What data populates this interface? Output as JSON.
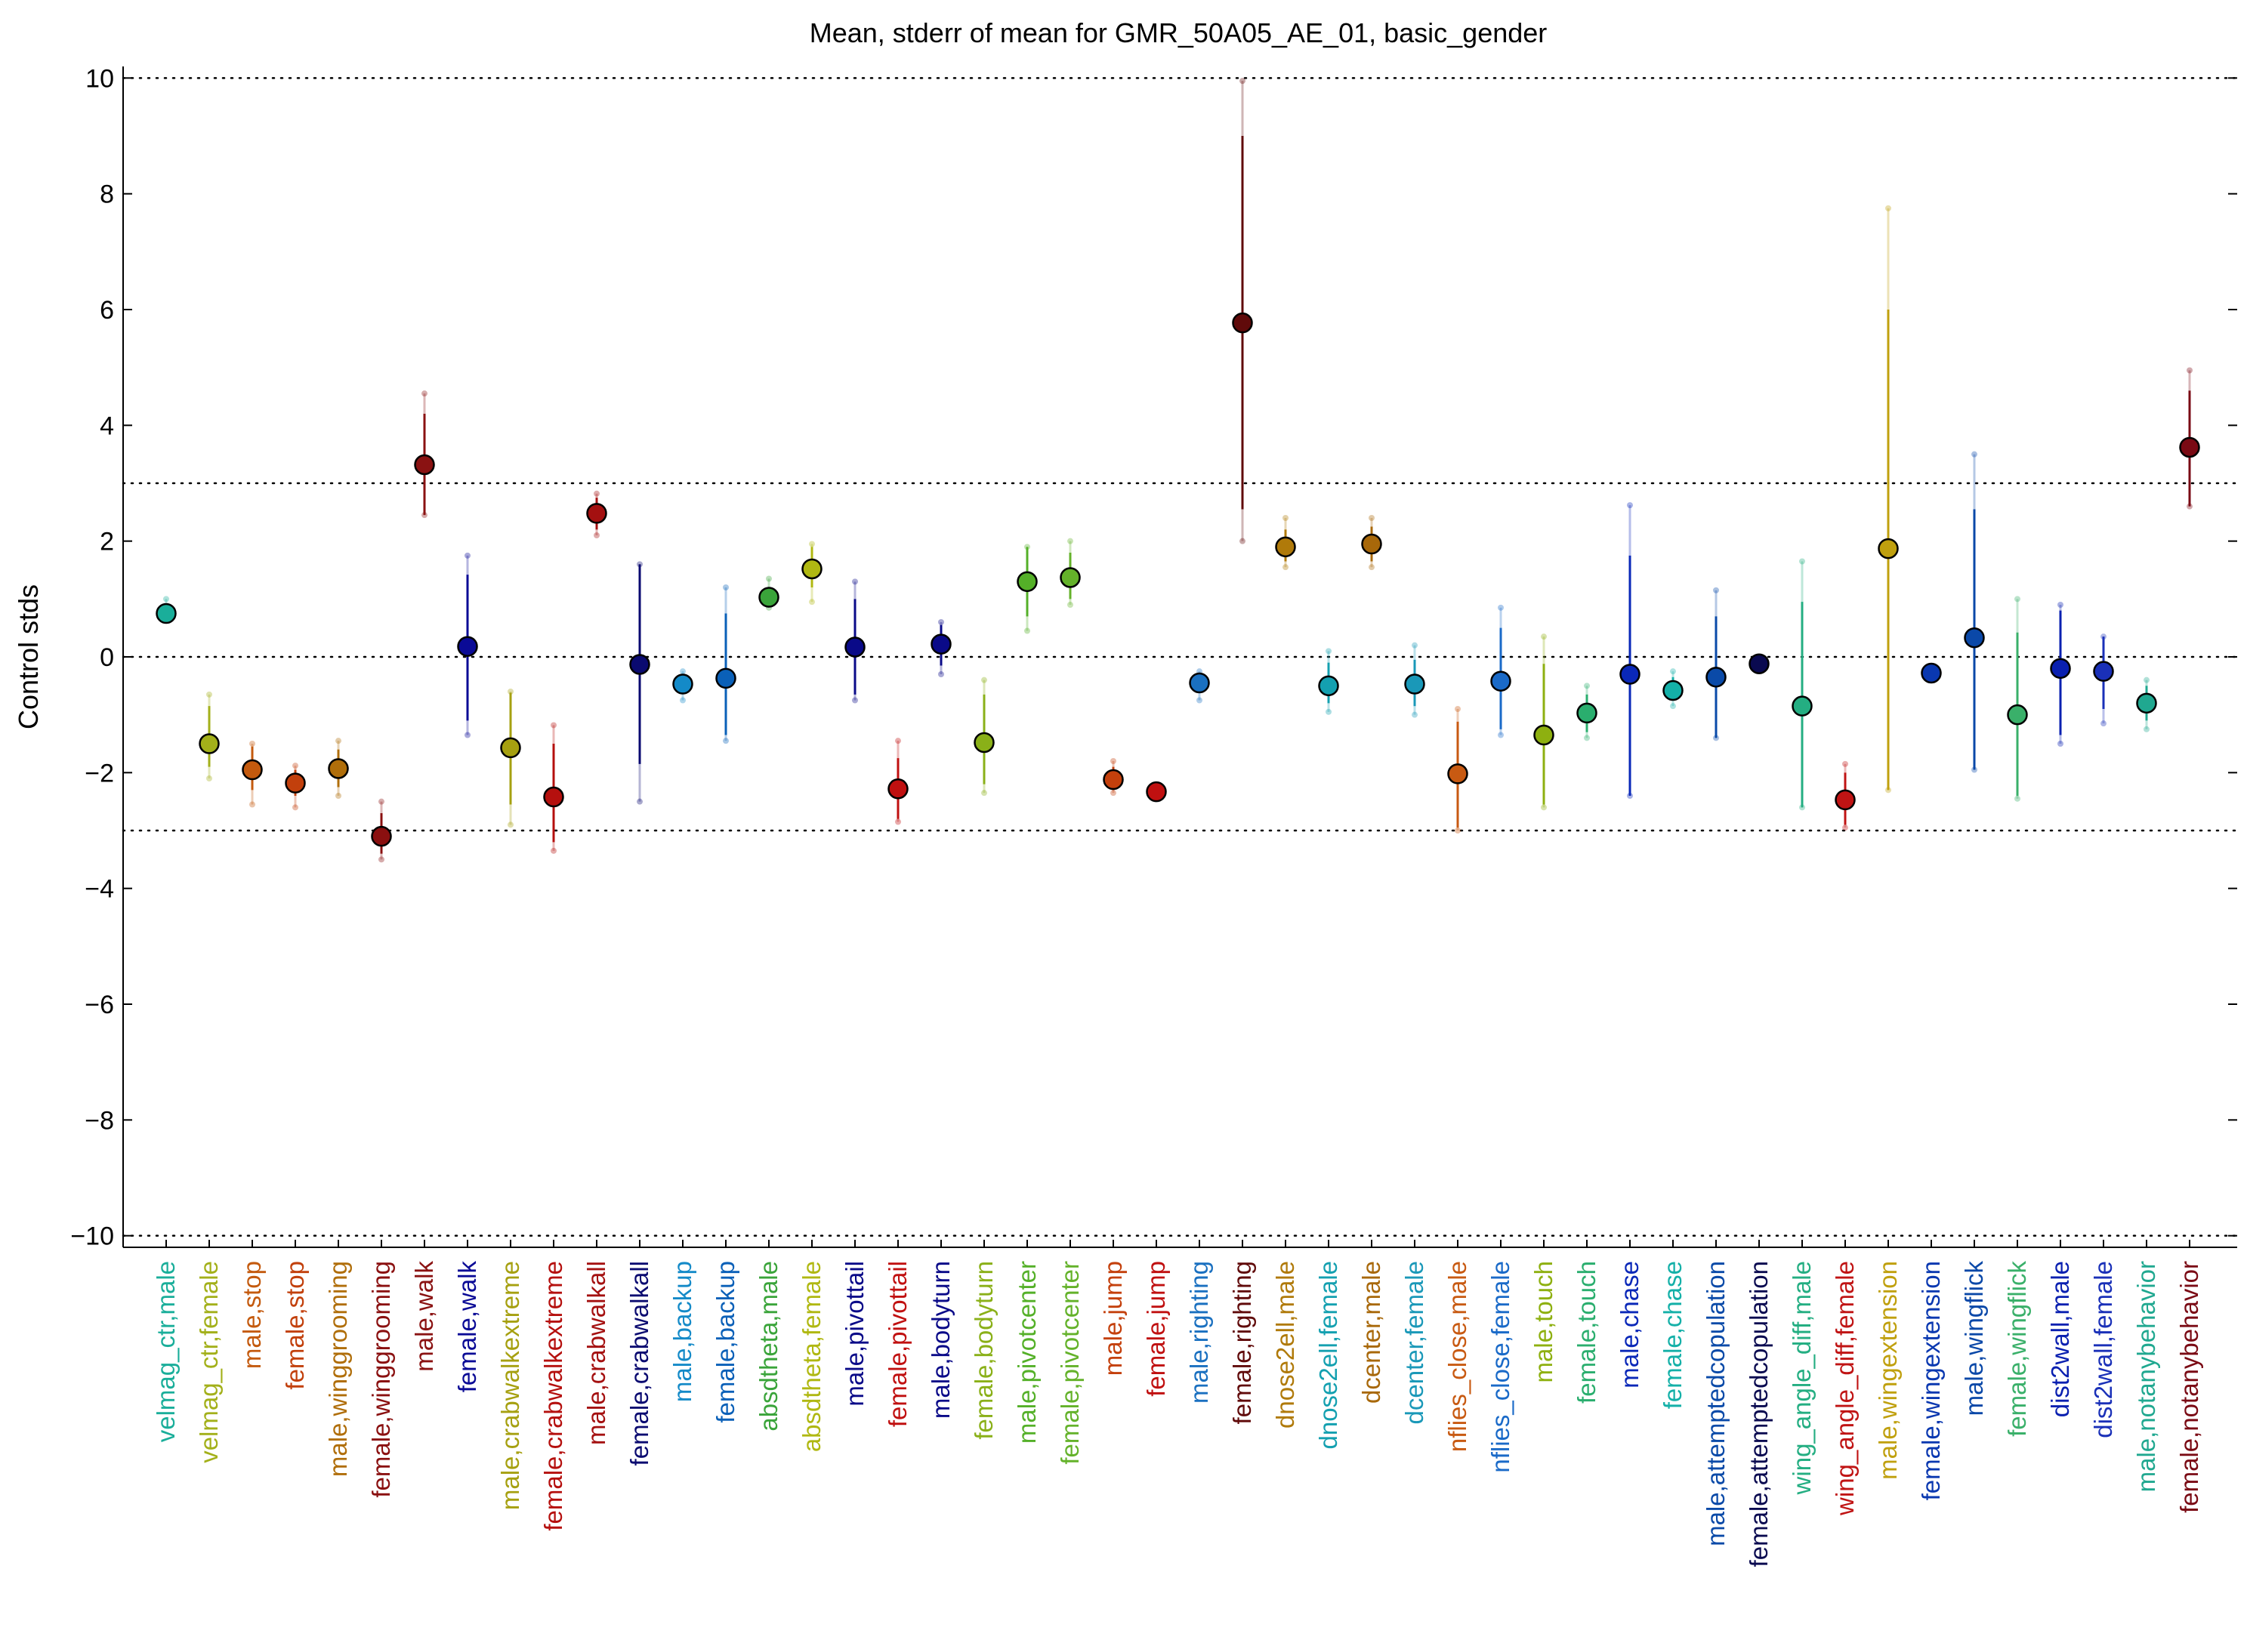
{
  "chart_data": {
    "type": "scatter",
    "title": "Mean, stderr of mean for GMR_50A05_AE_01, basic_gender",
    "xlabel": "",
    "ylabel": "Control stds",
    "ylim": [
      -10.2,
      10.2
    ],
    "yticks": [
      "10",
      "8",
      "6",
      "4",
      "2",
      "0",
      "−2",
      "−4",
      "−6",
      "−8",
      "−10"
    ],
    "ytick_values": [
      10,
      8,
      6,
      4,
      2,
      0,
      -2,
      -4,
      -6,
      -8,
      -10
    ],
    "reference_lines": [
      10,
      3,
      0,
      -3,
      -10
    ],
    "grid": false,
    "legend": "none",
    "points": [
      {
        "label": "velmag_ctr,male",
        "mean": 0.75,
        "err_lo": 0.7,
        "err_hi": 0.8,
        "ext_lo": 0.65,
        "ext_hi": 1.0,
        "color": "#1aae9a"
      },
      {
        "label": "velmag_ctr,female",
        "mean": -1.5,
        "err_lo": -1.9,
        "err_hi": -0.85,
        "ext_lo": -2.1,
        "ext_hi": -0.65,
        "color": "#a3b01a"
      },
      {
        "label": "male,stop",
        "mean": -1.95,
        "err_lo": -2.3,
        "err_hi": -1.55,
        "ext_lo": -2.55,
        "ext_hi": -1.5,
        "color": "#c45a0e"
      },
      {
        "label": "female,stop",
        "mean": -2.18,
        "err_lo": -2.4,
        "err_hi": -1.95,
        "ext_lo": -2.6,
        "ext_hi": -1.88,
        "color": "#c2400c"
      },
      {
        "label": "male,winggrooming",
        "mean": -1.93,
        "err_lo": -2.25,
        "err_hi": -1.6,
        "ext_lo": -2.4,
        "ext_hi": -1.45,
        "color": "#b06e0a"
      },
      {
        "label": "female,winggrooming",
        "mean": -3.1,
        "err_lo": -3.4,
        "err_hi": -2.7,
        "ext_lo": -3.5,
        "ext_hi": -2.5,
        "color": "#8a1010"
      },
      {
        "label": "male,walk",
        "mean": 3.32,
        "err_lo": 2.45,
        "err_hi": 4.2,
        "ext_lo": 2.45,
        "ext_hi": 4.55,
        "color": "#8a1212"
      },
      {
        "label": "female,walk",
        "mean": 0.18,
        "err_lo": -1.1,
        "err_hi": 1.42,
        "ext_lo": -1.35,
        "ext_hi": 1.75,
        "color": "#0a0a96"
      },
      {
        "label": "male,crabwalkextreme",
        "mean": -1.57,
        "err_lo": -2.55,
        "err_hi": -0.62,
        "ext_lo": -2.9,
        "ext_hi": -0.6,
        "color": "#a6a010"
      },
      {
        "label": "female,crabwalkextreme",
        "mean": -2.42,
        "err_lo": -3.2,
        "err_hi": -1.5,
        "ext_lo": -3.35,
        "ext_hi": -1.18,
        "color": "#b5100e"
      },
      {
        "label": "male,crabwalkall",
        "mean": 2.48,
        "err_lo": 2.2,
        "err_hi": 2.75,
        "ext_lo": 2.1,
        "ext_hi": 2.82,
        "color": "#a41010"
      },
      {
        "label": "female,crabwalkall",
        "mean": -0.13,
        "err_lo": -1.85,
        "err_hi": 1.6,
        "ext_lo": -2.5,
        "ext_hi": 1.6,
        "color": "#0a0a70"
      },
      {
        "label": "male,backup",
        "mean": -0.47,
        "err_lo": -0.6,
        "err_hi": -0.35,
        "ext_lo": -0.75,
        "ext_hi": -0.25,
        "color": "#148ac8"
      },
      {
        "label": "female,backup",
        "mean": -0.37,
        "err_lo": -1.35,
        "err_hi": 0.75,
        "ext_lo": -1.45,
        "ext_hi": 1.2,
        "color": "#0a60b8"
      },
      {
        "label": "absdtheta,male",
        "mean": 1.03,
        "err_lo": 0.9,
        "err_hi": 1.2,
        "ext_lo": 0.85,
        "ext_hi": 1.35,
        "color": "#3aa43a"
      },
      {
        "label": "absdtheta,female",
        "mean": 1.52,
        "err_lo": 1.2,
        "err_hi": 1.9,
        "ext_lo": 0.95,
        "ext_hi": 1.95,
        "color": "#b0b812"
      },
      {
        "label": "male,pivottail",
        "mean": 0.17,
        "err_lo": -0.65,
        "err_hi": 1.0,
        "ext_lo": -0.75,
        "ext_hi": 1.3,
        "color": "#0a0a88"
      },
      {
        "label": "female,pivottail",
        "mean": -2.28,
        "err_lo": -2.8,
        "err_hi": -1.75,
        "ext_lo": -2.85,
        "ext_hi": -1.45,
        "color": "#c01010"
      },
      {
        "label": "male,bodyturn",
        "mean": 0.22,
        "err_lo": -0.15,
        "err_hi": 0.55,
        "ext_lo": -0.3,
        "ext_hi": 0.6,
        "color": "#0a0a88"
      },
      {
        "label": "female,bodyturn",
        "mean": -1.48,
        "err_lo": -2.2,
        "err_hi": -0.65,
        "ext_lo": -2.35,
        "ext_hi": -0.4,
        "color": "#8ab018"
      },
      {
        "label": "male,pivotcenter",
        "mean": 1.3,
        "err_lo": 0.7,
        "err_hi": 1.9,
        "ext_lo": 0.45,
        "ext_hi": 1.9,
        "color": "#54b028"
      },
      {
        "label": "female,pivotcenter",
        "mean": 1.37,
        "err_lo": 1.0,
        "err_hi": 1.8,
        "ext_lo": 0.9,
        "ext_hi": 2.0,
        "color": "#64b22a"
      },
      {
        "label": "male,jump",
        "mean": -2.12,
        "err_lo": -2.3,
        "err_hi": -1.9,
        "ext_lo": -2.35,
        "ext_hi": -1.8,
        "color": "#c4400c"
      },
      {
        "label": "female,jump",
        "mean": -2.33,
        "err_lo": -2.35,
        "err_hi": -2.3,
        "ext_lo": -2.35,
        "ext_hi": -2.3,
        "color": "#c01010"
      },
      {
        "label": "male,righting",
        "mean": -0.45,
        "err_lo": -0.6,
        "err_hi": -0.3,
        "ext_lo": -0.75,
        "ext_hi": -0.25,
        "color": "#1a70c0"
      },
      {
        "label": "female,righting",
        "mean": 5.77,
        "err_lo": 2.55,
        "err_hi": 9.0,
        "ext_lo": 2.0,
        "ext_hi": 9.95,
        "color": "#600a0a"
      },
      {
        "label": "dnose2ell,male",
        "mean": 1.9,
        "err_lo": 1.65,
        "err_hi": 2.2,
        "ext_lo": 1.55,
        "ext_hi": 2.4,
        "color": "#b07a0a"
      },
      {
        "label": "dnose2ell,female",
        "mean": -0.5,
        "err_lo": -0.8,
        "err_hi": -0.1,
        "ext_lo": -0.95,
        "ext_hi": 0.1,
        "color": "#14a0b0"
      },
      {
        "label": "dcenter,male",
        "mean": 1.95,
        "err_lo": 1.65,
        "err_hi": 2.25,
        "ext_lo": 1.55,
        "ext_hi": 2.4,
        "color": "#a8680a"
      },
      {
        "label": "dcenter,female",
        "mean": -0.47,
        "err_lo": -0.85,
        "err_hi": -0.05,
        "ext_lo": -1.0,
        "ext_hi": 0.2,
        "color": "#1a98b8"
      },
      {
        "label": "nflies_close,male",
        "mean": -2.02,
        "err_lo": -2.95,
        "err_hi": -1.12,
        "ext_lo": -3.0,
        "ext_hi": -0.9,
        "color": "#c85a12"
      },
      {
        "label": "nflies_close,female",
        "mean": -0.42,
        "err_lo": -1.25,
        "err_hi": 0.5,
        "ext_lo": -1.35,
        "ext_hi": 0.85,
        "color": "#1a6ac8"
      },
      {
        "label": "male,touch",
        "mean": -1.35,
        "err_lo": -2.55,
        "err_hi": -0.12,
        "ext_lo": -2.6,
        "ext_hi": 0.35,
        "color": "#8eb010"
      },
      {
        "label": "female,touch",
        "mean": -0.97,
        "err_lo": -1.3,
        "err_hi": -0.65,
        "ext_lo": -1.4,
        "ext_hi": -0.5,
        "color": "#2aae6e"
      },
      {
        "label": "male,chase",
        "mean": -0.3,
        "err_lo": -2.4,
        "err_hi": 1.75,
        "ext_lo": -2.4,
        "ext_hi": 2.62,
        "color": "#0a28b8"
      },
      {
        "label": "female,chase",
        "mean": -0.58,
        "err_lo": -0.75,
        "err_hi": -0.35,
        "ext_lo": -0.85,
        "ext_hi": -0.25,
        "color": "#14b0a8"
      },
      {
        "label": "male,attemptedcopulation",
        "mean": -0.35,
        "err_lo": -1.4,
        "err_hi": 0.7,
        "ext_lo": -1.4,
        "ext_hi": 1.15,
        "color": "#0a4aa8"
      },
      {
        "label": "female,attemptedcopulation",
        "mean": -0.12,
        "err_lo": -0.15,
        "err_hi": -0.08,
        "ext_lo": -0.15,
        "ext_hi": -0.08,
        "color": "#0a0a50"
      },
      {
        "label": "wing_angle_diff,male",
        "mean": -0.85,
        "err_lo": -2.6,
        "err_hi": 0.95,
        "ext_lo": -2.6,
        "ext_hi": 1.65,
        "color": "#24ae82"
      },
      {
        "label": "wing_angle_diff,female",
        "mean": -2.47,
        "err_lo": -2.9,
        "err_hi": -2.0,
        "ext_lo": -2.95,
        "ext_hi": -1.85,
        "color": "#c01414"
      },
      {
        "label": "male,wingextension",
        "mean": 1.87,
        "err_lo": -2.3,
        "err_hi": 6.0,
        "ext_lo": -2.3,
        "ext_hi": 7.75,
        "color": "#c0a00e"
      },
      {
        "label": "female,wingextension",
        "mean": -0.28,
        "err_lo": -0.3,
        "err_hi": -0.25,
        "ext_lo": -0.3,
        "ext_hi": -0.25,
        "color": "#0a38b0"
      },
      {
        "label": "male,wingflick",
        "mean": 0.33,
        "err_lo": -1.95,
        "err_hi": 2.55,
        "ext_lo": -1.95,
        "ext_hi": 3.5,
        "color": "#0a48a8"
      },
      {
        "label": "female,wingflick",
        "mean": -1.0,
        "err_lo": -2.4,
        "err_hi": 0.42,
        "ext_lo": -2.45,
        "ext_hi": 1.0,
        "color": "#3ab06a"
      },
      {
        "label": "dist2wall,male",
        "mean": -0.2,
        "err_lo": -1.35,
        "err_hi": 0.8,
        "ext_lo": -1.5,
        "ext_hi": 0.9,
        "color": "#0a20b0"
      },
      {
        "label": "dist2wall,female",
        "mean": -0.25,
        "err_lo": -0.9,
        "err_hi": 0.35,
        "ext_lo": -1.15,
        "ext_hi": 0.35,
        "color": "#1a30b8"
      },
      {
        "label": "male,notanybehavior",
        "mean": -0.8,
        "err_lo": -1.1,
        "err_hi": -0.5,
        "ext_lo": -1.25,
        "ext_hi": -0.4,
        "color": "#20a890"
      },
      {
        "label": "female,notanybehavior",
        "mean": 3.62,
        "err_lo": 2.6,
        "err_hi": 4.6,
        "ext_lo": 2.6,
        "ext_hi": 4.95,
        "color": "#7a0a14"
      }
    ]
  }
}
